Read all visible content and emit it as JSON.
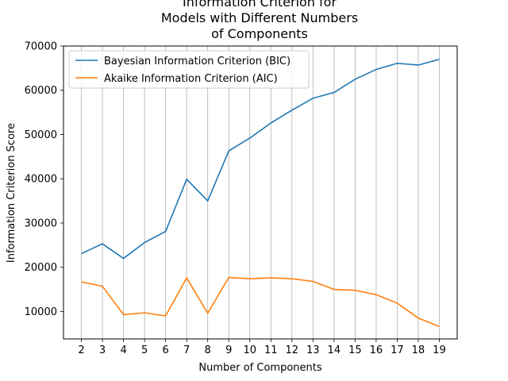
{
  "chart_data": {
    "type": "line",
    "title": "Information Criterion for Models with Different Numbers of Components",
    "title_lines": [
      "Information Criterion for",
      "Models with Different Numbers",
      "of Components"
    ],
    "xlabel": "Number of Components",
    "ylabel": "Information Criterion Score",
    "x": [
      2,
      3,
      4,
      5,
      6,
      7,
      8,
      9,
      10,
      11,
      12,
      13,
      14,
      15,
      16,
      17,
      18,
      19
    ],
    "x_tick_labels": [
      "2",
      "3",
      "4",
      "5",
      "6",
      "7",
      "8",
      "9",
      "10",
      "11",
      "12",
      "13",
      "14",
      "15",
      "16",
      "17",
      "18",
      "19"
    ],
    "y_tick_values": [
      10000,
      20000,
      30000,
      40000,
      50000,
      60000,
      70000
    ],
    "y_tick_labels": [
      "10000",
      "20000",
      "30000",
      "40000",
      "50000",
      "60000",
      "70000"
    ],
    "xlim": [
      1.15,
      19.85
    ],
    "ylim": [
      3800,
      70000
    ],
    "grid": "vertical",
    "legend_position": "upper-left",
    "series": [
      {
        "name": "Bayesian Information Criterion (BIC)",
        "color": "#1f77b4",
        "values": [
          23100,
          25300,
          22000,
          25600,
          28100,
          39900,
          35000,
          46300,
          49200,
          52600,
          55500,
          58200,
          59500,
          62500,
          64700,
          66100,
          65700,
          67000
        ]
      },
      {
        "name": "Akaike Information Criterion (AIC)",
        "color": "#ff7f0e",
        "values": [
          16700,
          15700,
          9300,
          9700,
          9000,
          17600,
          9600,
          17700,
          17400,
          17600,
          17400,
          16800,
          15000,
          14800,
          13800,
          11900,
          8500,
          6600
        ]
      }
    ]
  }
}
